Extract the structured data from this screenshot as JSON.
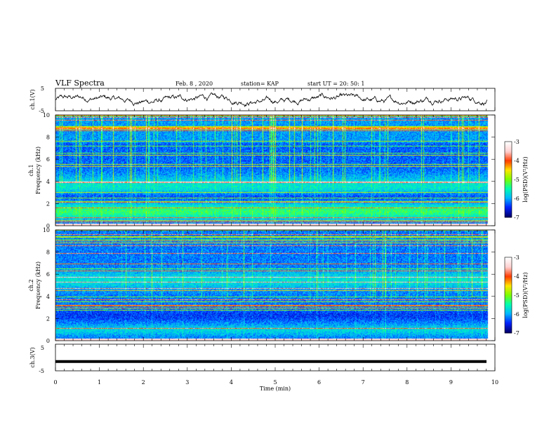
{
  "header": {
    "title": "VLF Spectra",
    "date": "Feb. 8  , 2020",
    "station": "station= KAP",
    "start": "start  UT  =   20: 50: 1"
  },
  "colors": {
    "trace": "#000000",
    "colormap": [
      "#00006e",
      "#0022ff",
      "#00b7ff",
      "#00ffb0",
      "#7cff00",
      "#ffe600",
      "#ff3b00",
      "#ffd0d0",
      "#ffffff"
    ]
  },
  "chart_data": [
    {
      "type": "line",
      "panel": "ch1-waveform",
      "ylabel": "ch.1(V)",
      "ylim": [
        -5,
        5
      ],
      "yticks": [
        "5",
        "-5"
      ],
      "xlim": [
        0,
        10
      ],
      "note_series": "noisy waveform approx between -3 and 3 V"
    },
    {
      "type": "heatmap",
      "panel": "ch1-spectrogram",
      "ylabel": "ch.1\nFrequency (kHz)",
      "ylim": [
        0,
        10
      ],
      "yticks": [
        "0",
        "2",
        "4",
        "6",
        "8",
        "10"
      ],
      "xlim": [
        0,
        10
      ],
      "colorbar": {
        "label": "log(PSD)(V²/Hz)",
        "range": [
          -7,
          -3
        ],
        "ticks": [
          "-3",
          "-4",
          "-5",
          "-6",
          "-7"
        ]
      }
    },
    {
      "type": "heatmap",
      "panel": "ch2-spectrogram",
      "ylabel": "ch.2\nFrequency (kHz)",
      "ylim": [
        0,
        10
      ],
      "yticks": [
        "0",
        "2",
        "4",
        "6",
        "8",
        "10"
      ],
      "xlim": [
        0,
        10
      ],
      "colorbar": {
        "label": "log(PSD)(V²/Hz)",
        "range": [
          -7,
          -3
        ],
        "ticks": [
          "-3",
          "-4",
          "-5",
          "-6",
          "-7"
        ]
      }
    },
    {
      "type": "line",
      "panel": "ch3-waveform",
      "ylabel": "ch.3(V)",
      "ylim": [
        -5,
        5
      ],
      "yticks": [
        "5",
        "-5"
      ],
      "xlim": [
        0,
        10
      ],
      "xlabel": "Time  (min)",
      "xticks": [
        "0",
        "1",
        "2",
        "3",
        "4",
        "5",
        "6",
        "7",
        "8",
        "9",
        "10"
      ],
      "constant_value": -1.5
    }
  ]
}
